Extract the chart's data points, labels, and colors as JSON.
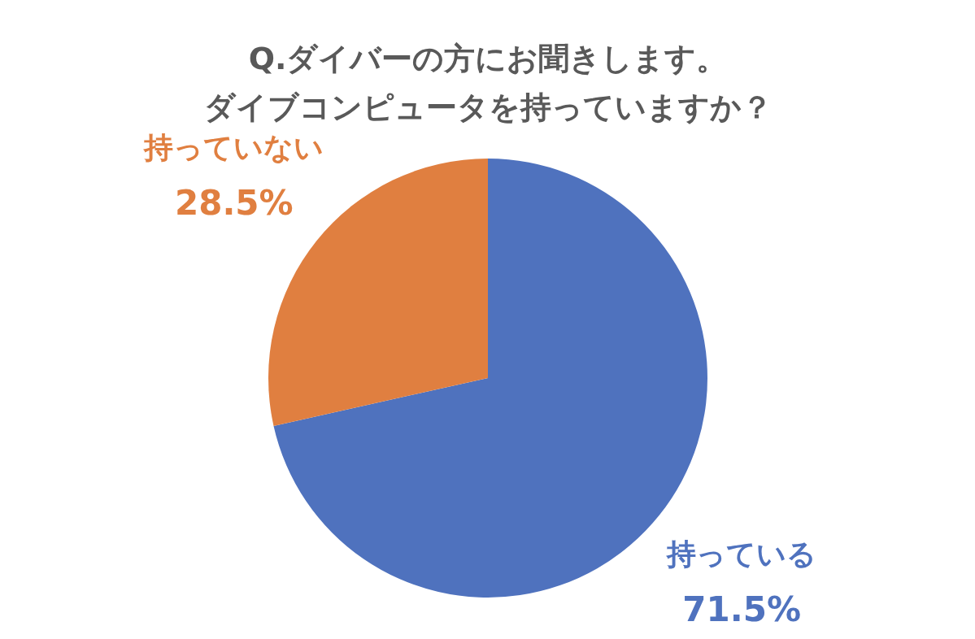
{
  "chart_data": {
    "type": "pie",
    "title": "Q.ダイバーの方にお聞きします。",
    "subtitle": "ダイブコンピュータを持っていますか？",
    "categories": [
      "持っている",
      "持っていない"
    ],
    "values": [
      71.5,
      28.5
    ],
    "colors": [
      "#4f72be",
      "#e07f40"
    ],
    "value_labels": [
      "71.5%",
      "28.5%"
    ]
  }
}
